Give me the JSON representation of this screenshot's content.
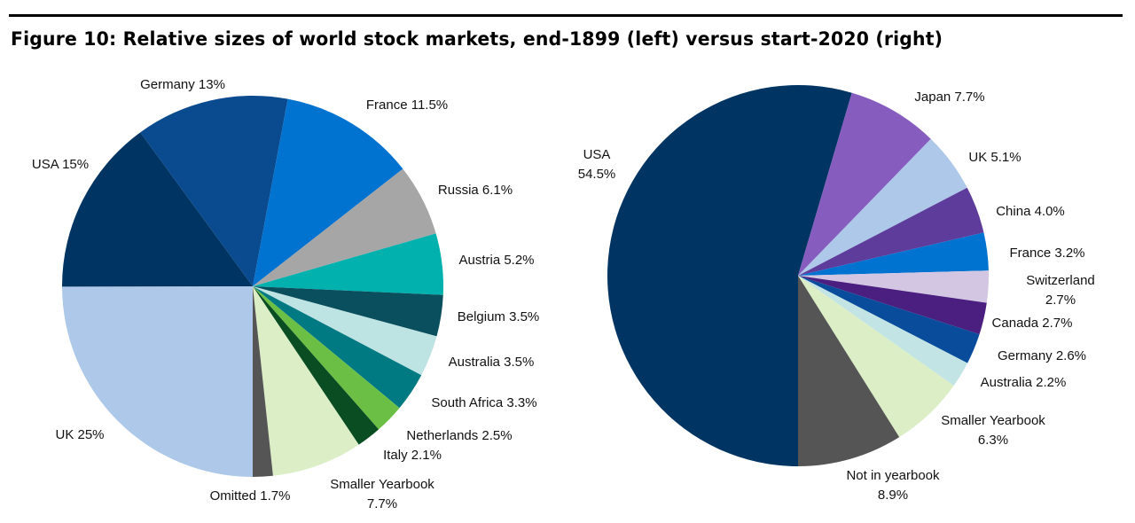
{
  "title": "Figure 10: Relative sizes of world stock markets, end-1899 (left) versus start-2020 (right)",
  "chart_data": [
    {
      "type": "pie",
      "title": "end-1899",
      "slices": [
        {
          "name": "UK",
          "value": 25,
          "label": "UK 25%",
          "color": "#adc8e8"
        },
        {
          "name": "USA",
          "value": 15,
          "label": "USA 15%",
          "color": "#003462"
        },
        {
          "name": "Germany",
          "value": 13,
          "label": "Germany 13%",
          "color": "#0a4a8e"
        },
        {
          "name": "France",
          "value": 11.5,
          "label": "France 11.5%",
          "color": "#0072cf"
        },
        {
          "name": "Russia",
          "value": 6.1,
          "label": "Russia 6.1%",
          "color": "#a6a6a6"
        },
        {
          "name": "Austria",
          "value": 5.2,
          "label": "Austria 5.2%",
          "color": "#00b1ae"
        },
        {
          "name": "Belgium",
          "value": 3.5,
          "label": "Belgium 3.5%",
          "color": "#0a4f5e"
        },
        {
          "name": "Australia",
          "value": 3.5,
          "label": "Australia 3.5%",
          "color": "#bde3e3"
        },
        {
          "name": "South Africa",
          "value": 3.3,
          "label": "South Africa 3.3%",
          "color": "#007a82"
        },
        {
          "name": "Netherlands",
          "value": 2.5,
          "label": "Netherlands 2.5%",
          "color": "#6bbf45"
        },
        {
          "name": "Italy",
          "value": 2.1,
          "label": "Italy 2.1%",
          "color": "#0a4d22"
        },
        {
          "name": "Smaller Yearbook",
          "value": 7.7,
          "label": "Smaller Yearbook\n7.7%",
          "color": "#dbeec6"
        },
        {
          "name": "Omitted",
          "value": 1.7,
          "label": "Omitted 1.7%",
          "color": "#555555"
        }
      ]
    },
    {
      "type": "pie",
      "title": "start-2020",
      "slices": [
        {
          "name": "USA",
          "value": 54.5,
          "label": "USA\n54.5%",
          "color": "#003462"
        },
        {
          "name": "Japan",
          "value": 7.7,
          "label": "Japan 7.7%",
          "color": "#875cbf"
        },
        {
          "name": "UK",
          "value": 5.1,
          "label": "UK 5.1%",
          "color": "#adc8e8"
        },
        {
          "name": "China",
          "value": 4.0,
          "label": "China 4.0%",
          "color": "#5e3c9b"
        },
        {
          "name": "France",
          "value": 3.2,
          "label": "France 3.2%",
          "color": "#0072cf"
        },
        {
          "name": "Switzerland",
          "value": 2.7,
          "label": "Switzerland 2.7%",
          "color": "#d3c6e3"
        },
        {
          "name": "Canada",
          "value": 2.7,
          "label": "Canada 2.7%",
          "color": "#4a1f80"
        },
        {
          "name": "Germany",
          "value": 2.6,
          "label": "Germany 2.6%",
          "color": "#0a4c9c"
        },
        {
          "name": "Australia",
          "value": 2.2,
          "label": "Australia 2.2%",
          "color": "#c2e4e4"
        },
        {
          "name": "Smaller Yearbook",
          "value": 6.3,
          "label": "Smaller Yearbook\n6.3%",
          "color": "#dbeec6"
        },
        {
          "name": "Not in yearbook",
          "value": 8.9,
          "label": "Not in yearbook\n8.9%",
          "color": "#555555"
        }
      ]
    }
  ]
}
